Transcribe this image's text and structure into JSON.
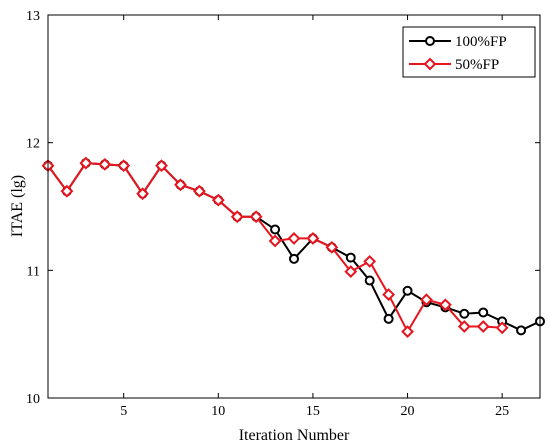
{
  "chart_data": {
    "type": "line",
    "xlabel": "Iteration Number",
    "ylabel": "ITAE (lg)",
    "xlim": [
      1,
      27
    ],
    "ylim": [
      10,
      13
    ],
    "xticks": [
      5,
      10,
      15,
      20,
      25
    ],
    "yticks": [
      10,
      11,
      12,
      13
    ],
    "grid": false,
    "legend_position": "top-right",
    "series": [
      {
        "name": "100%FP",
        "color": "#000000",
        "marker": "circle",
        "x": [
          1,
          2,
          3,
          4,
          5,
          6,
          7,
          8,
          9,
          10,
          11,
          12,
          13,
          14,
          15,
          16,
          17,
          18,
          19,
          20,
          21,
          22,
          23,
          24,
          25,
          26,
          27
        ],
        "values": [
          11.82,
          11.62,
          11.84,
          11.83,
          11.82,
          11.6,
          11.82,
          11.67,
          11.62,
          11.55,
          11.42,
          11.42,
          11.32,
          11.09,
          11.25,
          11.18,
          11.1,
          10.92,
          10.62,
          10.84,
          10.75,
          10.71,
          10.66,
          10.67,
          10.6,
          10.53,
          10.6
        ]
      },
      {
        "name": "50%FP",
        "color": "#e8141e",
        "marker": "diamond",
        "x": [
          1,
          2,
          3,
          4,
          5,
          6,
          7,
          8,
          9,
          10,
          11,
          12,
          13,
          14,
          15,
          16,
          17,
          18,
          19,
          20,
          21,
          22,
          23,
          24,
          25
        ],
        "values": [
          11.82,
          11.62,
          11.84,
          11.83,
          11.82,
          11.6,
          11.82,
          11.67,
          11.62,
          11.55,
          11.42,
          11.42,
          11.23,
          11.25,
          11.25,
          11.18,
          10.99,
          11.07,
          10.81,
          10.52,
          10.77,
          10.73,
          10.56,
          10.56,
          10.55
        ]
      }
    ]
  }
}
